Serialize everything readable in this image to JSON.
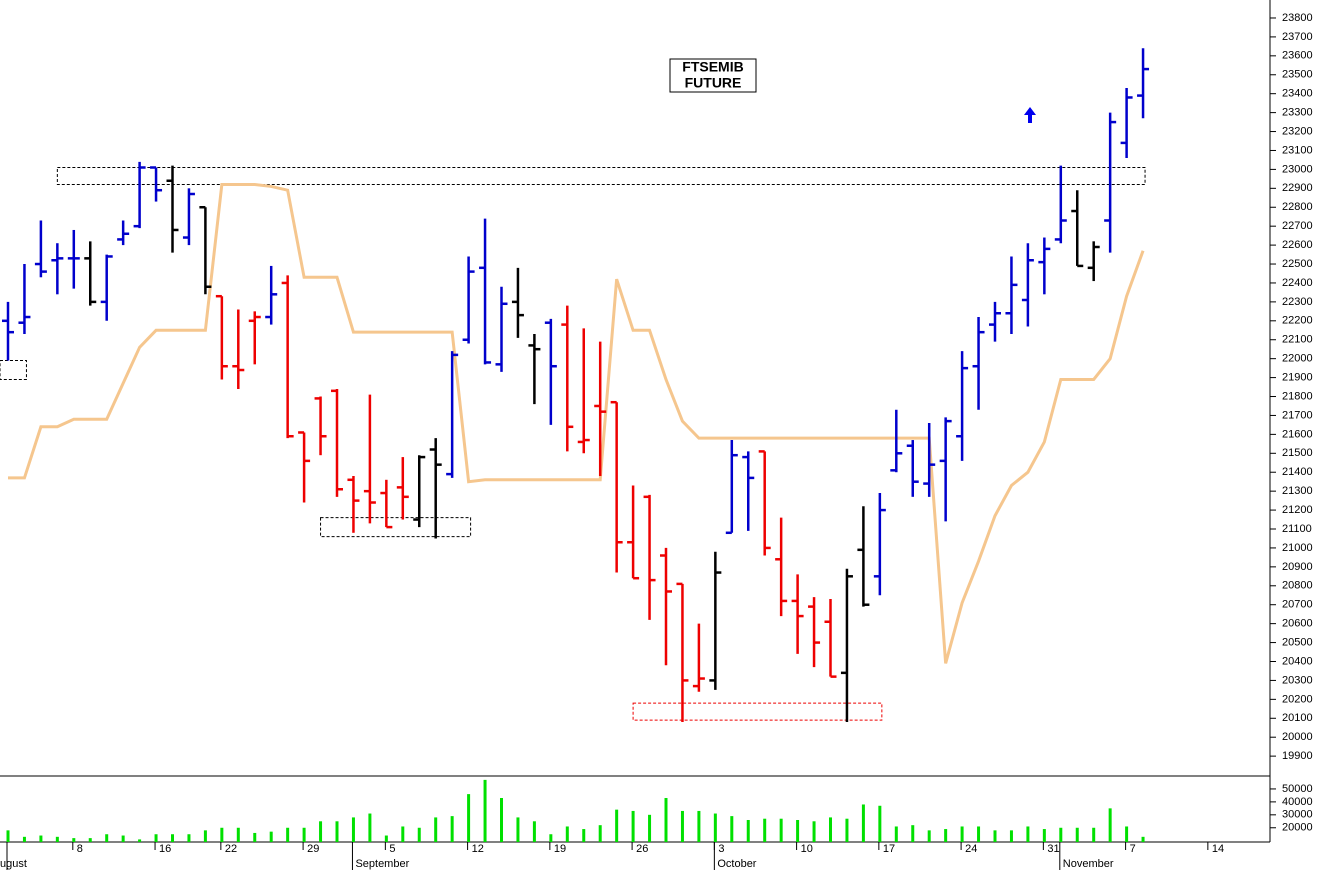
{
  "chart_data": {
    "type": "ohlc",
    "title_lines": [
      "FTSEMIB",
      "FUTURE"
    ],
    "categories": [
      null,
      null,
      null,
      null,
      "8",
      null,
      null,
      null,
      null,
      "16",
      null,
      null,
      null,
      "22",
      null,
      null,
      null,
      null,
      "29",
      null,
      null,
      null,
      null,
      "5",
      null,
      null,
      null,
      null,
      "12",
      null,
      null,
      null,
      null,
      "19",
      null,
      null,
      null,
      null,
      "26",
      null,
      null,
      null,
      null,
      "3",
      null,
      null,
      null,
      null,
      "10",
      null,
      null,
      null,
      null,
      "17",
      null,
      null,
      null,
      null,
      "24",
      null,
      null,
      null,
      null,
      "31",
      null,
      null,
      null,
      null,
      "7",
      null,
      null,
      null,
      null,
      "14"
    ],
    "month_labels": [
      "ugust",
      null,
      null,
      null,
      null,
      null,
      null,
      null,
      null,
      null,
      null,
      null,
      null,
      null,
      null,
      null,
      null,
      null,
      null,
      null,
      null,
      "September",
      null,
      null,
      null,
      null,
      null,
      null,
      null,
      null,
      null,
      null,
      null,
      null,
      null,
      null,
      null,
      null,
      null,
      null,
      null,
      null,
      null,
      "October",
      null,
      null,
      null,
      null,
      null,
      null,
      null,
      null,
      null,
      null,
      null,
      null,
      null,
      null,
      null,
      null,
      null,
      null,
      null,
      null,
      "November",
      null,
      null,
      null,
      null,
      null,
      null,
      null,
      null,
      null
    ],
    "open": [
      22200,
      22190,
      22500,
      22520,
      22530,
      22530,
      22300,
      22630,
      22700,
      23010,
      22940,
      22640,
      22800,
      22330,
      21960,
      22200,
      22220,
      22400,
      21610,
      21790,
      21830,
      21360,
      21300,
      21290,
      21320,
      21150,
      21520,
      21390,
      22100,
      22480,
      21970,
      22300,
      22070,
      22190,
      22180,
      21560,
      21750,
      21770,
      21030,
      21270,
      20960,
      20810,
      20270,
      20300,
      21080,
      21480,
      21510,
      20940,
      20720,
      20690,
      20610,
      20340,
      20990,
      20850,
      21410,
      21540,
      21340,
      21460,
      21590,
      21960,
      22180,
      22240,
      22310,
      22510,
      22630,
      22780,
      22480,
      22730,
      23140,
      23390,
      null,
      null,
      null,
      null
    ],
    "high": [
      22300,
      22500,
      22730,
      22610,
      22680,
      22620,
      22550,
      22730,
      23040,
      23010,
      23020,
      22900,
      22800,
      22330,
      22260,
      22250,
      22490,
      22440,
      21610,
      21800,
      21840,
      21380,
      21810,
      21360,
      21480,
      21490,
      21580,
      22040,
      22540,
      22740,
      22380,
      22480,
      22130,
      22210,
      22280,
      22160,
      22090,
      21770,
      21330,
      21280,
      21000,
      20810,
      20600,
      20980,
      21570,
      21510,
      21510,
      21160,
      20860,
      20740,
      20730,
      20890,
      21220,
      21290,
      21730,
      21570,
      21660,
      21690,
      22040,
      22220,
      22300,
      22540,
      22610,
      22640,
      23020,
      22890,
      22620,
      23300,
      23430,
      23640,
      null,
      null,
      null,
      null
    ],
    "low": [
      21990,
      22130,
      22430,
      22340,
      22370,
      22280,
      22200,
      22600,
      22690,
      22830,
      22560,
      22600,
      22340,
      21890,
      21840,
      21970,
      22180,
      21580,
      21240,
      21490,
      21270,
      21080,
      21130,
      21110,
      21150,
      21110,
      21050,
      21370,
      22080,
      21970,
      21930,
      22110,
      21760,
      21650,
      21510,
      21500,
      21380,
      20870,
      20840,
      20620,
      20380,
      20080,
      20240,
      20250,
      21080,
      21090,
      20960,
      20640,
      20440,
      20370,
      20320,
      20080,
      20690,
      20750,
      21400,
      21270,
      21270,
      21140,
      21460,
      21730,
      22090,
      22130,
      22170,
      22340,
      22610,
      22490,
      22410,
      22560,
      23060,
      23270,
      null,
      null,
      null,
      null
    ],
    "close": [
      22140,
      22220,
      22460,
      22530,
      22530,
      22300,
      22540,
      22660,
      23010,
      22890,
      22680,
      22870,
      22380,
      21960,
      21940,
      22220,
      22340,
      21590,
      21460,
      21590,
      21310,
      21250,
      21240,
      21110,
      21270,
      21480,
      21440,
      22020,
      22460,
      21980,
      22290,
      22230,
      22050,
      21960,
      21640,
      21570,
      21720,
      21030,
      20840,
      20830,
      20770,
      20300,
      20310,
      20870,
      21490,
      21370,
      21000,
      20720,
      20640,
      20500,
      20320,
      20850,
      20700,
      21200,
      21500,
      21350,
      21440,
      21670,
      21950,
      22140,
      22240,
      22390,
      22520,
      22580,
      22730,
      22490,
      22590,
      23250,
      23380,
      23530,
      null,
      null,
      null,
      null
    ],
    "bar_colors": [
      "#0000cc",
      "#0000cc",
      "#0000cc",
      "#0000cc",
      "#0000cc",
      "#000000",
      "#0000cc",
      "#0000cc",
      "#0000cc",
      "#0000cc",
      "#000000",
      "#0000cc",
      "#000000",
      "#ee0000",
      "#ee0000",
      "#ee0000",
      "#0000cc",
      "#ee0000",
      "#ee0000",
      "#ee0000",
      "#ee0000",
      "#ee0000",
      "#ee0000",
      "#ee0000",
      "#ee0000",
      "#000000",
      "#000000",
      "#0000cc",
      "#0000cc",
      "#0000cc",
      "#0000cc",
      "#000000",
      "#000000",
      "#0000cc",
      "#ee0000",
      "#ee0000",
      "#ee0000",
      "#ee0000",
      "#ee0000",
      "#ee0000",
      "#ee0000",
      "#ee0000",
      "#ee0000",
      "#000000",
      "#0000cc",
      "#0000cc",
      "#ee0000",
      "#ee0000",
      "#ee0000",
      "#ee0000",
      "#ee0000",
      "#000000",
      "#000000",
      "#0000cc",
      "#0000cc",
      "#0000cc",
      "#0000cc",
      "#0000cc",
      "#0000cc",
      "#0000cc",
      "#0000cc",
      "#0000cc",
      "#0000cc",
      "#0000cc",
      "#0000cc",
      "#000000",
      "#000000",
      "#0000cc",
      "#0000cc",
      "#0000cc",
      null,
      null,
      null,
      null
    ],
    "line": {
      "color": "#f5c68e",
      "values": [
        21370,
        21370,
        21640,
        21640,
        21680,
        21680,
        21680,
        21870,
        22060,
        22150,
        22150,
        22150,
        22150,
        22920,
        22920,
        22920,
        22910,
        22890,
        22430,
        22430,
        22430,
        22140,
        22140,
        22140,
        22140,
        22140,
        22140,
        22140,
        21350,
        21360,
        21360,
        21360,
        21360,
        21360,
        21360,
        21360,
        21360,
        22420,
        22150,
        22150,
        21890,
        21670,
        21580,
        21580,
        21580,
        21580,
        21580,
        21580,
        21580,
        21580,
        21580,
        21580,
        21580,
        21580,
        21580,
        21580,
        21580,
        20390,
        20710,
        20930,
        21170,
        21330,
        21400,
        21560,
        21890,
        21890,
        21890,
        22000,
        22330,
        22570,
        null,
        null,
        null,
        null
      ]
    },
    "zones": [
      {
        "x": [
          3,
          69
        ],
        "low": 22920,
        "high": 23010,
        "color": "#000000"
      },
      {
        "x": [
          0,
          1
        ],
        "low": 21890,
        "high": 21990,
        "color": "#000000"
      },
      {
        "x": [
          19,
          28
        ],
        "low": 21060,
        "high": 21160,
        "color": "#000000"
      },
      {
        "x": [
          38,
          53
        ],
        "low": 20090,
        "high": 20180,
        "color": "#ee0000"
      }
    ],
    "ylim": [
      19795,
      23895
    ],
    "yticks": [
      19900,
      20000,
      20100,
      20200,
      20300,
      20400,
      20500,
      20600,
      20700,
      20800,
      20900,
      21000,
      21100,
      21200,
      21300,
      21400,
      21500,
      21600,
      21700,
      21800,
      21900,
      22000,
      22100,
      22200,
      22300,
      22400,
      22500,
      22600,
      22700,
      22800,
      22900,
      23000,
      23100,
      23200,
      23300,
      23400,
      23500,
      23600,
      23700,
      23800
    ],
    "volume": {
      "color": "#00e000",
      "values": [
        18000,
        13000,
        14000,
        13000,
        12000,
        12000,
        15000,
        14000,
        11000,
        15000,
        15000,
        15000,
        18000,
        20000,
        20000,
        16000,
        17000,
        20000,
        20000,
        25000,
        25000,
        28000,
        31000,
        14000,
        21000,
        20000,
        28000,
        29000,
        46000,
        57000,
        43000,
        28000,
        25000,
        15000,
        21000,
        19000,
        22000,
        34000,
        33000,
        30000,
        43000,
        33000,
        33000,
        31000,
        29000,
        26000,
        27000,
        27000,
        26000,
        25000,
        28000,
        27000,
        38000,
        37000,
        21000,
        22000,
        18000,
        19000,
        21000,
        21000,
        18000,
        18000,
        21000,
        19000,
        20000,
        20000,
        20000,
        35000,
        21000,
        13000,
        null,
        null,
        null,
        null
      ],
      "ylim": [
        9000,
        60000
      ],
      "yticks": [
        20000,
        30000,
        40000,
        50000
      ]
    }
  }
}
